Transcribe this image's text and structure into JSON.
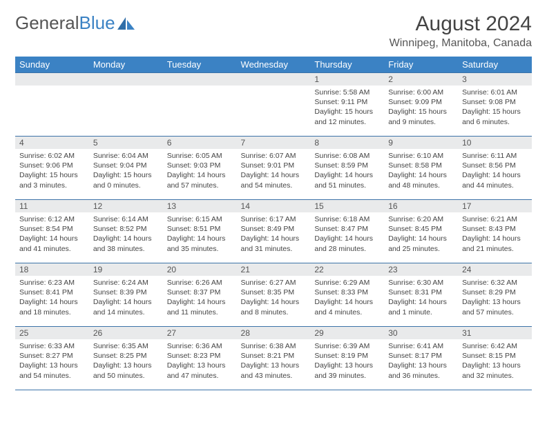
{
  "logo": {
    "text_gray": "General",
    "text_blue": "Blue"
  },
  "title": "August 2024",
  "location": "Winnipeg, Manitoba, Canada",
  "colors": {
    "header_bg": "#3b82c4",
    "header_text": "#ffffff",
    "daynum_bg": "#e9eaeb",
    "border": "#3b72a8",
    "body_text": "#444444"
  },
  "weekdays": [
    "Sunday",
    "Monday",
    "Tuesday",
    "Wednesday",
    "Thursday",
    "Friday",
    "Saturday"
  ],
  "weeks": [
    [
      {
        "n": "",
        "sr": "",
        "ss": "",
        "d1": "",
        "d2": ""
      },
      {
        "n": "",
        "sr": "",
        "ss": "",
        "d1": "",
        "d2": ""
      },
      {
        "n": "",
        "sr": "",
        "ss": "",
        "d1": "",
        "d2": ""
      },
      {
        "n": "",
        "sr": "",
        "ss": "",
        "d1": "",
        "d2": ""
      },
      {
        "n": "1",
        "sr": "Sunrise: 5:58 AM",
        "ss": "Sunset: 9:11 PM",
        "d1": "Daylight: 15 hours",
        "d2": "and 12 minutes."
      },
      {
        "n": "2",
        "sr": "Sunrise: 6:00 AM",
        "ss": "Sunset: 9:09 PM",
        "d1": "Daylight: 15 hours",
        "d2": "and 9 minutes."
      },
      {
        "n": "3",
        "sr": "Sunrise: 6:01 AM",
        "ss": "Sunset: 9:08 PM",
        "d1": "Daylight: 15 hours",
        "d2": "and 6 minutes."
      }
    ],
    [
      {
        "n": "4",
        "sr": "Sunrise: 6:02 AM",
        "ss": "Sunset: 9:06 PM",
        "d1": "Daylight: 15 hours",
        "d2": "and 3 minutes."
      },
      {
        "n": "5",
        "sr": "Sunrise: 6:04 AM",
        "ss": "Sunset: 9:04 PM",
        "d1": "Daylight: 15 hours",
        "d2": "and 0 minutes."
      },
      {
        "n": "6",
        "sr": "Sunrise: 6:05 AM",
        "ss": "Sunset: 9:03 PM",
        "d1": "Daylight: 14 hours",
        "d2": "and 57 minutes."
      },
      {
        "n": "7",
        "sr": "Sunrise: 6:07 AM",
        "ss": "Sunset: 9:01 PM",
        "d1": "Daylight: 14 hours",
        "d2": "and 54 minutes."
      },
      {
        "n": "8",
        "sr": "Sunrise: 6:08 AM",
        "ss": "Sunset: 8:59 PM",
        "d1": "Daylight: 14 hours",
        "d2": "and 51 minutes."
      },
      {
        "n": "9",
        "sr": "Sunrise: 6:10 AM",
        "ss": "Sunset: 8:58 PM",
        "d1": "Daylight: 14 hours",
        "d2": "and 48 minutes."
      },
      {
        "n": "10",
        "sr": "Sunrise: 6:11 AM",
        "ss": "Sunset: 8:56 PM",
        "d1": "Daylight: 14 hours",
        "d2": "and 44 minutes."
      }
    ],
    [
      {
        "n": "11",
        "sr": "Sunrise: 6:12 AM",
        "ss": "Sunset: 8:54 PM",
        "d1": "Daylight: 14 hours",
        "d2": "and 41 minutes."
      },
      {
        "n": "12",
        "sr": "Sunrise: 6:14 AM",
        "ss": "Sunset: 8:52 PM",
        "d1": "Daylight: 14 hours",
        "d2": "and 38 minutes."
      },
      {
        "n": "13",
        "sr": "Sunrise: 6:15 AM",
        "ss": "Sunset: 8:51 PM",
        "d1": "Daylight: 14 hours",
        "d2": "and 35 minutes."
      },
      {
        "n": "14",
        "sr": "Sunrise: 6:17 AM",
        "ss": "Sunset: 8:49 PM",
        "d1": "Daylight: 14 hours",
        "d2": "and 31 minutes."
      },
      {
        "n": "15",
        "sr": "Sunrise: 6:18 AM",
        "ss": "Sunset: 8:47 PM",
        "d1": "Daylight: 14 hours",
        "d2": "and 28 minutes."
      },
      {
        "n": "16",
        "sr": "Sunrise: 6:20 AM",
        "ss": "Sunset: 8:45 PM",
        "d1": "Daylight: 14 hours",
        "d2": "and 25 minutes."
      },
      {
        "n": "17",
        "sr": "Sunrise: 6:21 AM",
        "ss": "Sunset: 8:43 PM",
        "d1": "Daylight: 14 hours",
        "d2": "and 21 minutes."
      }
    ],
    [
      {
        "n": "18",
        "sr": "Sunrise: 6:23 AM",
        "ss": "Sunset: 8:41 PM",
        "d1": "Daylight: 14 hours",
        "d2": "and 18 minutes."
      },
      {
        "n": "19",
        "sr": "Sunrise: 6:24 AM",
        "ss": "Sunset: 8:39 PM",
        "d1": "Daylight: 14 hours",
        "d2": "and 14 minutes."
      },
      {
        "n": "20",
        "sr": "Sunrise: 6:26 AM",
        "ss": "Sunset: 8:37 PM",
        "d1": "Daylight: 14 hours",
        "d2": "and 11 minutes."
      },
      {
        "n": "21",
        "sr": "Sunrise: 6:27 AM",
        "ss": "Sunset: 8:35 PM",
        "d1": "Daylight: 14 hours",
        "d2": "and 8 minutes."
      },
      {
        "n": "22",
        "sr": "Sunrise: 6:29 AM",
        "ss": "Sunset: 8:33 PM",
        "d1": "Daylight: 14 hours",
        "d2": "and 4 minutes."
      },
      {
        "n": "23",
        "sr": "Sunrise: 6:30 AM",
        "ss": "Sunset: 8:31 PM",
        "d1": "Daylight: 14 hours",
        "d2": "and 1 minute."
      },
      {
        "n": "24",
        "sr": "Sunrise: 6:32 AM",
        "ss": "Sunset: 8:29 PM",
        "d1": "Daylight: 13 hours",
        "d2": "and 57 minutes."
      }
    ],
    [
      {
        "n": "25",
        "sr": "Sunrise: 6:33 AM",
        "ss": "Sunset: 8:27 PM",
        "d1": "Daylight: 13 hours",
        "d2": "and 54 minutes."
      },
      {
        "n": "26",
        "sr": "Sunrise: 6:35 AM",
        "ss": "Sunset: 8:25 PM",
        "d1": "Daylight: 13 hours",
        "d2": "and 50 minutes."
      },
      {
        "n": "27",
        "sr": "Sunrise: 6:36 AM",
        "ss": "Sunset: 8:23 PM",
        "d1": "Daylight: 13 hours",
        "d2": "and 47 minutes."
      },
      {
        "n": "28",
        "sr": "Sunrise: 6:38 AM",
        "ss": "Sunset: 8:21 PM",
        "d1": "Daylight: 13 hours",
        "d2": "and 43 minutes."
      },
      {
        "n": "29",
        "sr": "Sunrise: 6:39 AM",
        "ss": "Sunset: 8:19 PM",
        "d1": "Daylight: 13 hours",
        "d2": "and 39 minutes."
      },
      {
        "n": "30",
        "sr": "Sunrise: 6:41 AM",
        "ss": "Sunset: 8:17 PM",
        "d1": "Daylight: 13 hours",
        "d2": "and 36 minutes."
      },
      {
        "n": "31",
        "sr": "Sunrise: 6:42 AM",
        "ss": "Sunset: 8:15 PM",
        "d1": "Daylight: 13 hours",
        "d2": "and 32 minutes."
      }
    ]
  ]
}
